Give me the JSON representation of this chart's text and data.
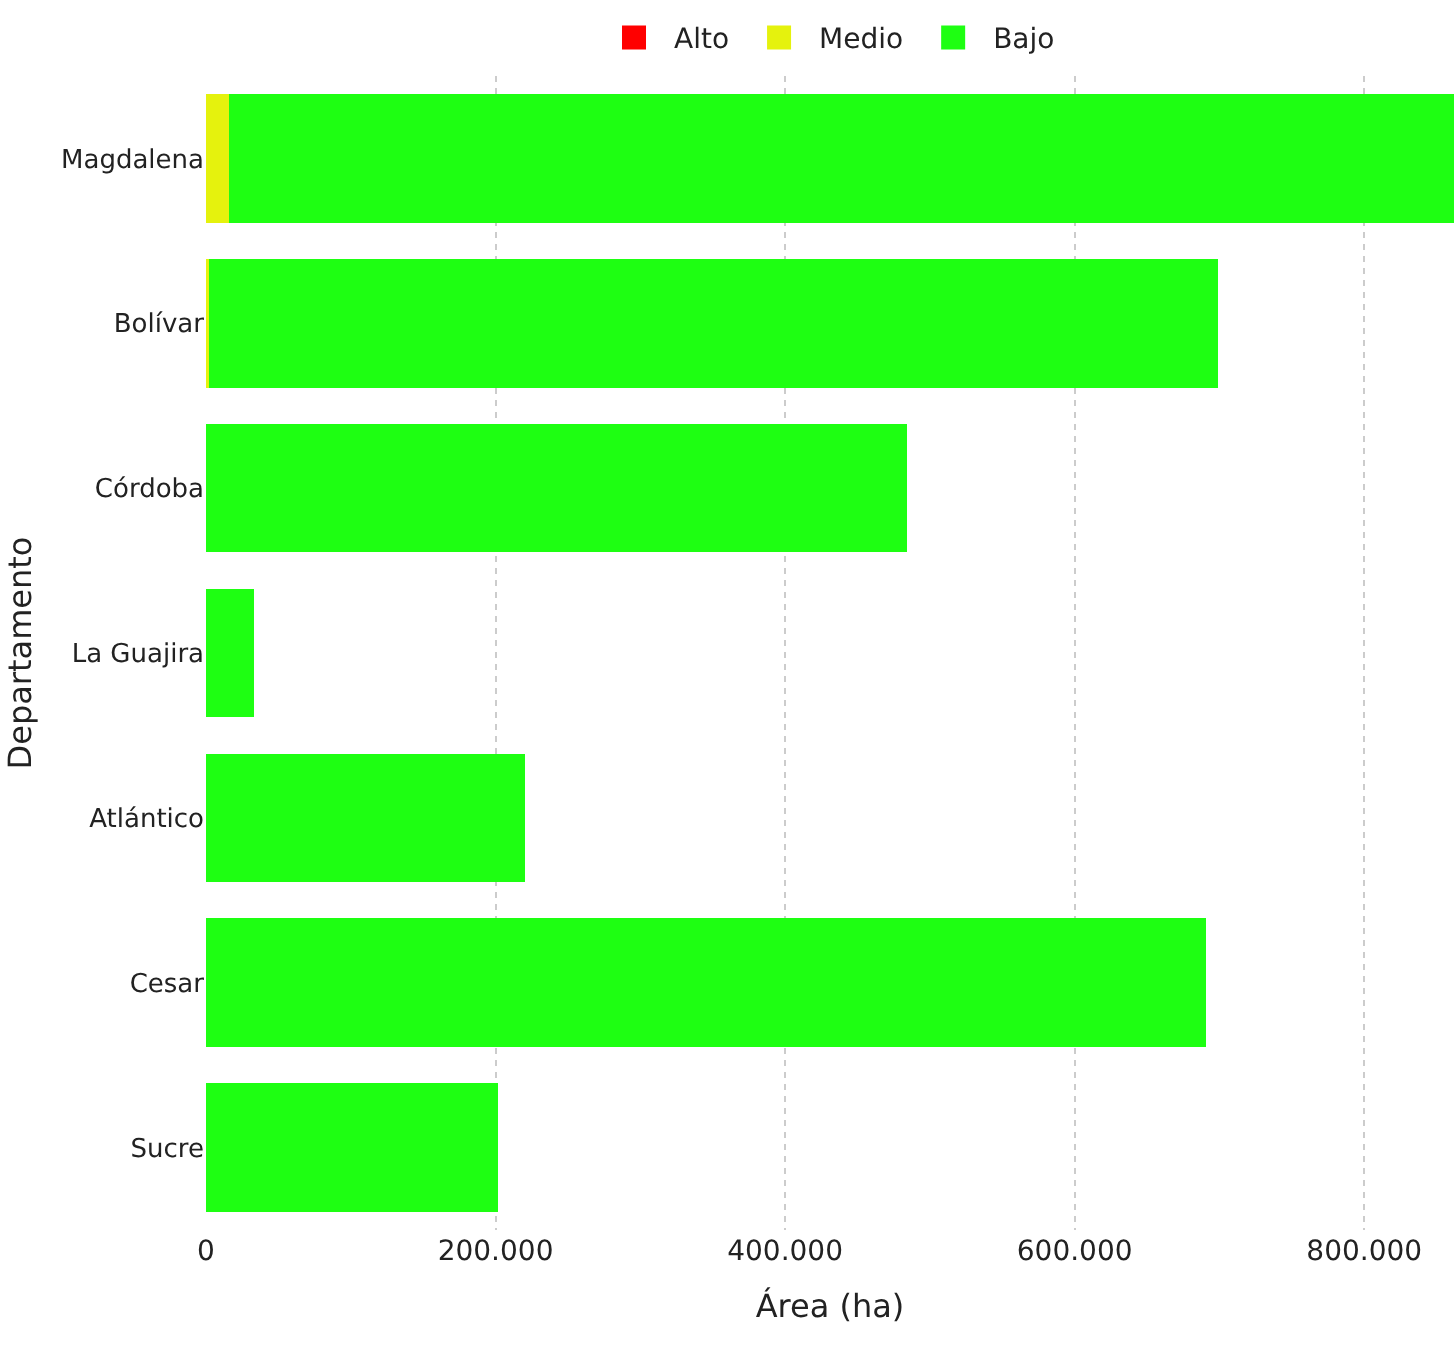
{
  "chart_data": {
    "type": "bar",
    "orientation": "horizontal",
    "stacked": true,
    "categories": [
      "Magdalena",
      "Bolívar",
      "Córdoba",
      "La Guajira",
      "Atlántico",
      "Cesar",
      "Sucre"
    ],
    "series": [
      {
        "name": "Alto",
        "color": "#ff0000",
        "values": [
          0,
          0,
          0,
          0,
          0,
          0,
          0
        ]
      },
      {
        "name": "Medio",
        "color": "#e5f20d",
        "values": [
          16000,
          2000,
          0,
          0,
          0,
          0,
          0
        ]
      },
      {
        "name": "Bajo",
        "color": "#1eff12",
        "values": [
          846000,
          697000,
          484000,
          33000,
          220000,
          691000,
          202000
        ]
      }
    ],
    "xlim": [
      0,
      862000
    ],
    "xticks": [
      0,
      {
        "value": 200000,
        "label": "200.000"
      },
      {
        "value": 400000,
        "label": "400.000"
      },
      {
        "value": 600000,
        "label": "600.000"
      },
      {
        "value": 800000,
        "label": "800.000"
      }
    ],
    "xlabel": "Área (ha)",
    "ylabel": "Departamento",
    "grid": "x",
    "legend": "top"
  }
}
